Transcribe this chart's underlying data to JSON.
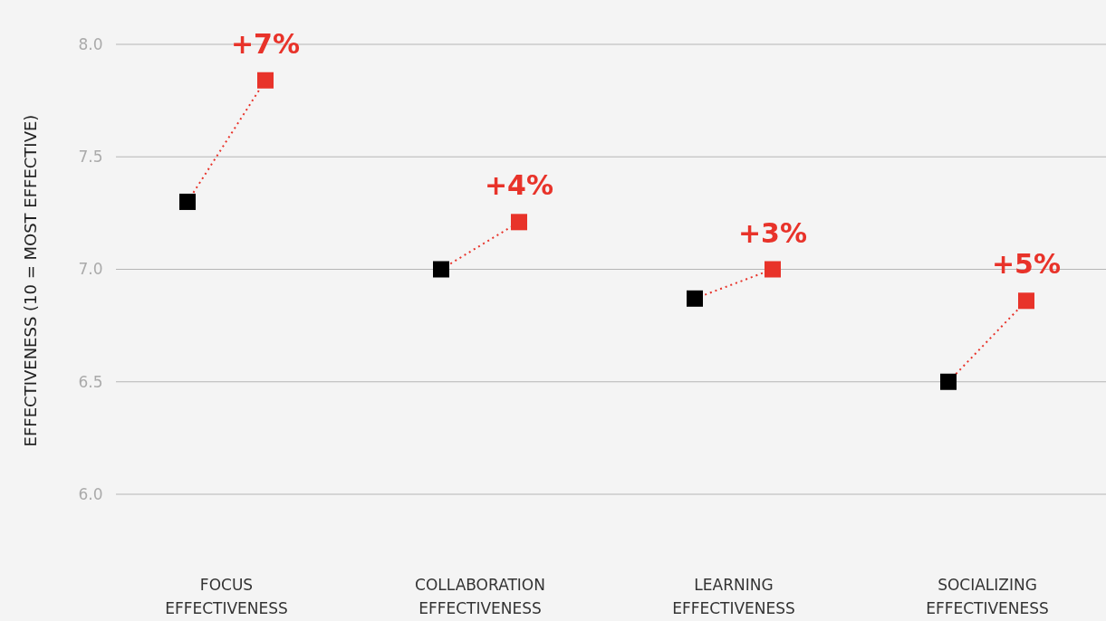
{
  "chart_data": {
    "type": "scatter",
    "ylabel": "EFFECTIVENESS (10 = MOST EFFECTIVE)",
    "categories": [
      "FOCUS EFFECTIVENESS",
      "COLLABORATION EFFECTIVENESS",
      "LEARNING EFFECTIVENESS",
      "SOCIALIZING EFFECTIVENESS"
    ],
    "series": [
      {
        "color": "#000000",
        "values": [
          7.3,
          7.0,
          6.87,
          6.5
        ]
      },
      {
        "color": "#e8332a",
        "values": [
          7.84,
          7.21,
          7.0,
          6.86
        ]
      }
    ],
    "annotations": [
      {
        "text": "+7%",
        "y": 7.84
      },
      {
        "text": "+4%",
        "y": 7.21
      },
      {
        "text": "+3%",
        "y": 7.0
      },
      {
        "text": "+5%",
        "y": 6.86
      }
    ],
    "ylim": [
      6,
      8
    ],
    "yticks": [
      {
        "value": 6,
        "label": "6.0"
      },
      {
        "value": 6.5,
        "label": "6.5"
      },
      {
        "value": 7,
        "label": "7.0"
      },
      {
        "value": 7.5,
        "label": "7.5"
      },
      {
        "value": 8,
        "label": "8.0"
      }
    ],
    "grid": "y",
    "marker": "square",
    "line_style": "dotted"
  }
}
